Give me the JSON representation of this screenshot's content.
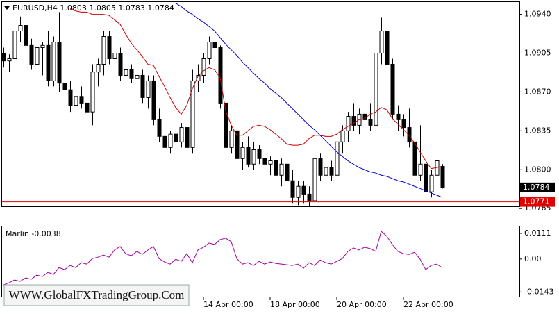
{
  "chart_data": [
    {
      "type": "candlestick",
      "title": "EURUSD,H4  1.0803 1.0805 1.0783 1.0784",
      "categories": [
        null,
        null,
        null,
        null,
        null,
        null,
        null,
        null,
        null,
        null,
        null,
        null,
        null,
        null,
        null,
        null,
        null,
        null,
        null,
        null,
        null,
        null,
        null,
        null,
        null,
        null,
        null,
        null,
        null,
        null,
        null,
        null,
        null,
        null,
        null,
        null,
        "14 Apr 00:00",
        null,
        null,
        null,
        null,
        null,
        null,
        null,
        null,
        null,
        null,
        null,
        "18 Apr 00:00",
        null,
        null,
        null,
        null,
        null,
        null,
        null,
        null,
        null,
        null,
        null,
        "20 Apr 00:00",
        null,
        null,
        null,
        null,
        null,
        null,
        null,
        null,
        null,
        null,
        null,
        "22 Apr 00:00",
        null,
        null,
        null,
        null,
        null,
        null,
        null
      ],
      "open": [
        1.0905,
        1.0898,
        1.09,
        1.0925,
        1.093,
        1.0912,
        1.0895,
        1.091,
        1.0912,
        1.088,
        1.0915,
        1.0878,
        1.0872,
        1.0858,
        1.0866,
        1.086,
        1.0852,
        1.0888,
        1.0895,
        1.092,
        1.09,
        1.0905,
        1.0885,
        1.089,
        1.0882,
        1.0885,
        1.0865,
        1.088,
        1.0845,
        1.083,
        1.082,
        1.0832,
        1.0825,
        1.0838,
        1.082,
        1.088,
        1.0885,
        1.09,
        1.0915,
        1.091,
        1.086,
        1.082,
        1.0835,
        1.081,
        1.082,
        1.0805,
        1.0818,
        1.081,
        1.0805,
        1.0808,
        1.0795,
        1.0805,
        1.079,
        1.0775,
        1.0785,
        1.0778,
        1.0772,
        1.081,
        1.0795,
        1.0802,
        1.0795,
        1.0825,
        1.0835,
        1.0848,
        1.084,
        1.085,
        1.0845,
        1.084,
        1.0905,
        1.0925,
        1.0895,
        1.085,
        1.0845,
        1.0838,
        1.0825,
        1.0795,
        1.0805,
        1.078,
        1.0795,
        1.0803
      ],
      "high": [
        1.091,
        1.0904,
        1.0932,
        1.0938,
        1.0942,
        1.0918,
        1.0915,
        1.0915,
        1.0925,
        1.092,
        1.0942,
        1.089,
        1.088,
        1.0872,
        1.0875,
        1.0868,
        1.0895,
        1.09,
        1.0925,
        1.0925,
        1.0912,
        1.091,
        1.0895,
        1.0895,
        1.089,
        1.089,
        1.0885,
        1.0885,
        1.0855,
        1.0838,
        1.0835,
        1.0838,
        1.0842,
        1.0845,
        1.089,
        1.0895,
        1.0905,
        1.092,
        1.0925,
        1.0912,
        1.0862,
        1.084,
        1.084,
        1.0825,
        1.083,
        1.0825,
        1.0822,
        1.0815,
        1.0812,
        1.0812,
        1.081,
        1.0808,
        1.08,
        1.079,
        1.079,
        1.0785,
        1.0815,
        1.0815,
        1.0805,
        1.0808,
        1.083,
        1.084,
        1.0852,
        1.086,
        1.0855,
        1.0858,
        1.086,
        1.091,
        1.0937,
        1.093,
        1.09,
        1.0858,
        1.085,
        1.0855,
        1.0835,
        1.084,
        1.081,
        1.08,
        1.0815,
        1.0805
      ],
      "low": [
        1.0892,
        1.0888,
        1.0885,
        1.0915,
        1.0905,
        1.089,
        1.089,
        1.0885,
        1.0875,
        1.0875,
        1.087,
        1.0865,
        1.0852,
        1.085,
        1.0855,
        1.0848,
        1.084,
        1.0875,
        1.0885,
        1.0895,
        1.0888,
        1.088,
        1.0878,
        1.0878,
        1.087,
        1.086,
        1.0855,
        1.084,
        1.0825,
        1.0815,
        1.0815,
        1.082,
        1.082,
        1.0815,
        1.0815,
        1.087,
        1.0878,
        1.0895,
        1.0905,
        1.0855,
        1.0758,
        1.0815,
        1.0805,
        1.08,
        1.0802,
        1.08,
        1.0805,
        1.08,
        1.0795,
        1.079,
        1.0785,
        1.0785,
        1.077,
        1.0768,
        1.077,
        1.0762,
        1.0768,
        1.079,
        1.0785,
        1.079,
        1.079,
        1.0815,
        1.0825,
        1.0835,
        1.0832,
        1.084,
        1.0835,
        1.0835,
        1.0895,
        1.089,
        1.0845,
        1.0835,
        1.083,
        1.082,
        1.079,
        1.079,
        1.0772,
        1.0775,
        1.079,
        1.0783
      ],
      "close": [
        1.0898,
        1.09,
        1.0925,
        1.093,
        1.0912,
        1.0895,
        1.091,
        1.0912,
        1.088,
        1.0915,
        1.0878,
        1.0872,
        1.0858,
        1.0866,
        1.086,
        1.0852,
        1.0888,
        1.0895,
        1.092,
        1.09,
        1.0905,
        1.0885,
        1.089,
        1.0882,
        1.0885,
        1.0865,
        1.088,
        1.0845,
        1.083,
        1.082,
        1.0832,
        1.0825,
        1.0838,
        1.082,
        1.088,
        1.0885,
        1.09,
        1.0915,
        1.091,
        1.086,
        1.082,
        1.0835,
        1.081,
        1.082,
        1.0805,
        1.0818,
        1.081,
        1.0805,
        1.0808,
        1.0795,
        1.0805,
        1.079,
        1.0775,
        1.0785,
        1.0778,
        1.0772,
        1.081,
        1.0795,
        1.0802,
        1.0795,
        1.0825,
        1.0835,
        1.0848,
        1.084,
        1.085,
        1.0845,
        1.084,
        1.0905,
        1.0925,
        1.0895,
        1.085,
        1.0845,
        1.0838,
        1.0825,
        1.0795,
        1.0805,
        1.078,
        1.0795,
        1.0808,
        1.0784
      ],
      "series": [
        {
          "color": "#cc0000",
          "values": [
            null,
            null,
            null,
            null,
            null,
            null,
            null,
            null,
            null,
            null,
            null,
            null,
            1.0945,
            1.0943,
            1.0942,
            1.0942,
            1.094,
            1.094,
            1.094,
            1.0939,
            1.0935,
            1.0931,
            1.0922,
            1.0914,
            1.0908,
            1.0902,
            1.0895,
            1.0894,
            1.0884,
            1.0875,
            1.0865,
            1.0856,
            1.085,
            1.0858,
            1.0873,
            1.0884,
            1.0889,
            1.0892,
            1.089,
            1.0883,
            1.0853,
            1.084,
            1.0831,
            1.0831,
            1.0835,
            1.0839,
            1.084,
            1.0839,
            1.0836,
            1.0832,
            1.0828,
            1.0823,
            1.0822,
            1.0822,
            1.0823,
            1.0828,
            1.0831,
            1.0831,
            1.083,
            1.083,
            1.0832,
            1.0836,
            1.0839,
            1.0842,
            1.0845,
            1.0846,
            1.085,
            1.0852,
            1.0856,
            1.0854,
            1.0846,
            1.0841,
            1.0836,
            1.0831,
            1.0824,
            1.0816,
            1.0808,
            1.0801,
            1.0802,
            1.0803
          ]
        },
        {
          "color": "#0000cc",
          "values": [
            null,
            null,
            null,
            null,
            null,
            null,
            null,
            null,
            null,
            null,
            null,
            null,
            null,
            null,
            null,
            null,
            null,
            null,
            null,
            null,
            null,
            null,
            null,
            null,
            null,
            null,
            null,
            null,
            null,
            null,
            null,
            1.095,
            1.0947,
            1.0943,
            1.094,
            1.0936,
            1.0933,
            1.0929,
            1.0925,
            1.0919,
            1.0913,
            1.0908,
            1.0903,
            1.0897,
            1.0892,
            1.0887,
            1.0882,
            1.0878,
            1.0873,
            1.0869,
            1.0865,
            1.086,
            1.0855,
            1.085,
            1.0845,
            1.084,
            1.0836,
            1.0831,
            1.0826,
            1.0821,
            1.0816,
            1.0812,
            1.0808,
            1.0805,
            1.0802,
            1.08,
            1.0798,
            1.0797,
            1.0795,
            1.0794,
            1.0792,
            1.079,
            1.0789,
            1.0787,
            1.0785,
            1.0783,
            1.0781,
            1.0779,
            1.0777,
            1.0775
          ]
        }
      ],
      "ylim": [
        1.0767,
        1.0951
      ],
      "yticks": [
        {
          "value": 1.094,
          "label": "1.0940"
        },
        1.0905,
        {
          "value": 1.087,
          "label": "1.0870"
        },
        1.0835,
        {
          "value": 1.08,
          "label": "1.0800"
        },
        1.0765
      ],
      "price_line": 1.0771,
      "price_line_color": "#e00000",
      "current_price": 1.0784
    },
    {
      "type": "line",
      "title": "Marlin -0.0038",
      "color": "#a000a0",
      "values": [
        -0.0112,
        -0.0103,
        -0.0091,
        -0.0097,
        -0.0082,
        -0.0088,
        -0.007,
        -0.0076,
        -0.0058,
        -0.0067,
        -0.0037,
        -0.0046,
        -0.0028,
        -0.0037,
        -0.0016,
        -0.0022,
        0.0002,
        0.0008,
        0.0017,
        0.0008,
        0.0039,
        0.0054,
        0.0023,
        0.0014,
        0.0033,
        0.002,
        0.0039,
        0.0054,
        0.0002,
        -0.0013,
        -0.0022,
        -0.0001,
        -0.001,
        0.0023,
        -0.0016,
        0.0039,
        0.0051,
        0.0069,
        0.0063,
        0.0084,
        0.009,
        0.0075,
        0.0002,
        -0.0022,
        -0.0016,
        -0.0028,
        -0.001,
        -0.0022,
        -0.0013,
        -0.0019,
        -0.0022,
        -0.0025,
        -0.0028,
        -0.0022,
        -0.004,
        -0.0016,
        -0.0028,
        -0.0004,
        -0.0016,
        -0.0022,
        -0.001,
        0.0002,
        0.0033,
        0.0048,
        0.0039,
        0.0051,
        0.0045,
        0.0033,
        0.012,
        0.0099,
        0.0063,
        0.0033,
        0.0023,
        0.002,
        0.0029,
        -0.0001,
        -0.0046,
        -0.0028,
        -0.0022,
        -0.0038
      ],
      "ylim": [
        -0.0163,
        0.0141
      ],
      "yticks": [
        0.0111,
        {
          "value": 0,
          "label": "0.00"
        },
        -0.0143
      ]
    }
  ],
  "watermark": "WWW.GlobalFXTradingGroup.Com"
}
